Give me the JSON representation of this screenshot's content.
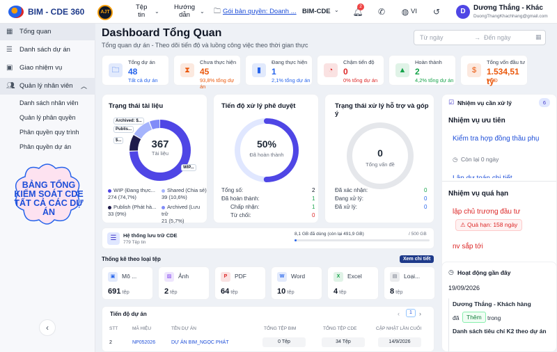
{
  "app": {
    "brand": "BIM - CDE 360",
    "org_logo_text": "AJT"
  },
  "topnav": {
    "tep_tin": "Tệp\ntin",
    "huong_dan": "Hướng\ndẫn",
    "license_link": "Gói bản quyền: Doanh ...",
    "module": "BIM-CDE",
    "notif_count": "2",
    "lang": "VI",
    "user_name": "Dương Thắng - Khác",
    "user_email": "DuongThangKhachhang@gmail.com",
    "avatar_letter": "D"
  },
  "sidebar": {
    "items": [
      {
        "label": "Tổng quan"
      },
      {
        "label": "Danh sách dự án"
      },
      {
        "label": "Giao nhiệm vụ"
      },
      {
        "label": "Quản lý nhân viên"
      }
    ],
    "subitems": [
      "Danh sách nhân viên",
      "Quản lý phân quyền",
      "Phân quyền quy trình",
      "Phân quyền dự án"
    ],
    "banner": "BẢNG TỔNG KIỂM SOÁT CDE TẤT CẢ CÁC DỰ ÁN"
  },
  "header": {
    "title": "Dashboard Tổng Quan",
    "subtitle": "Tổng quan dự án - Theo dõi tiến độ và luồng công việc theo thời gian thực",
    "date_from_placeholder": "Từ ngày",
    "date_to_placeholder": "Đến ngày"
  },
  "stats": [
    {
      "label": "Tổng dự án",
      "value": "48",
      "sub": "Tất cả dự án",
      "color": "#2563eb",
      "icon": "folder-icon"
    },
    {
      "label": "Chưa thực hiện",
      "value": "45",
      "sub": "93,8% tổng dự án",
      "color": "#ea580c",
      "icon": "hourglass-icon"
    },
    {
      "label": "Đang thực hiện",
      "value": "1",
      "sub": "2,1% tổng dự án",
      "color": "#2563eb",
      "icon": "bar-chart-icon"
    },
    {
      "label": "Chậm tiến độ",
      "value": "0",
      "sub": "0% tổng dự án",
      "color": "#dc2626",
      "icon": "clock-alert-icon"
    },
    {
      "label": "Hoàn thành",
      "value": "2",
      "sub": "4,2% tổng dự án",
      "color": "#16a34a",
      "icon": "growth-chart-icon"
    },
    {
      "label": "Tổng vốn đầu tư",
      "value": "1.534,51 tỷ",
      "sub": "VNĐ",
      "color": "#ea580c",
      "icon": "money-icon"
    }
  ],
  "doc_status": {
    "title": "Trạng thái tài liệu",
    "total": "367",
    "total_label": "Tài liệu",
    "tags": [
      "Archived: $...",
      "Publis...",
      "$...",
      "WIP..."
    ],
    "legend": [
      {
        "name": "WIP (Đang thực...",
        "detail": "274 (74,7%)",
        "color": "#4f46e5"
      },
      {
        "name": "Shared (Chia sẻ)",
        "detail": "39 (10,6%)",
        "color": "#a5b4fc"
      },
      {
        "name": "Publish (Phát hà...",
        "detail": "33 (9%)",
        "color": "#1e1b4b"
      },
      {
        "name": "Archived (Lưu trữ",
        "detail": "21 (5,7%)",
        "color": "#818cf8"
      }
    ]
  },
  "approval": {
    "title": "Tiến độ xử lý phê duyệt",
    "percent": "50%",
    "percent_label": "Đã hoàn thành",
    "rows": [
      {
        "label": "Tổng số:",
        "value": "2"
      },
      {
        "label": "Đã hoàn thành:",
        "value": "1"
      },
      {
        "label": "Chấp nhận:",
        "value": "1"
      },
      {
        "label": "Từ chối:",
        "value": "0"
      }
    ]
  },
  "support": {
    "title": "Trạng thái xử lý hỗ trợ và góp ý",
    "count": "0",
    "count_label": "Tổng vấn đề",
    "rows": [
      {
        "label": "Đã xác nhận:",
        "value": "0"
      },
      {
        "label": "Đang xử lý:",
        "value": "0"
      },
      {
        "label": "Đã xử lý:",
        "value": "0"
      }
    ]
  },
  "storage": {
    "title": "Hệ thống lưu trữ CDE",
    "files": "779 Tệp tin",
    "used": "8,1 GB đã dùng (còn lại 491,9 GB)",
    "total": "/ 500 GB",
    "used_fraction": 0.0162
  },
  "file_types": {
    "title": "Thống kê theo loại tệp",
    "view_all": "Xem chi tiết",
    "items": [
      {
        "name": "Mô ...",
        "count": "691",
        "unit": "tệp",
        "color": "#2563eb",
        "icon": "model-icon"
      },
      {
        "name": "Ảnh",
        "count": "2",
        "unit": "tệp",
        "color": "#7c3aed",
        "icon": "image-icon"
      },
      {
        "name": "PDF",
        "count": "64",
        "unit": "tệp",
        "color": "#dc2626",
        "icon": "pdf-icon"
      },
      {
        "name": "Word",
        "count": "10",
        "unit": "tệp",
        "color": "#2563eb",
        "icon": "word-icon"
      },
      {
        "name": "Excel",
        "count": "4",
        "unit": "tệp",
        "color": "#16a34a",
        "icon": "excel-icon"
      },
      {
        "name": "Loại...",
        "count": "8",
        "unit": "tệp",
        "color": "#6b7280",
        "icon": "file-icon"
      }
    ]
  },
  "progress_table": {
    "title": "Tiến độ dự án",
    "page": "1",
    "columns": [
      "STT",
      "MÃ HIỆU",
      "TÊN DỰ ÁN",
      "TỔNG TỆP BIM",
      "TỔNG TỆP CDE",
      "CẬP NHẬT LẦN CUỐI"
    ],
    "rows": [
      {
        "stt": "2",
        "code": "NP052026",
        "name": "DỰ ÁN BIM_NGỌC PHÁT",
        "bim": "0 Tệp",
        "cde": "34 Tệp",
        "updated": "14/9/2026"
      }
    ]
  },
  "tasks": {
    "title": "Nhiệm vụ cần xử lý",
    "count": "6",
    "priority_title": "Nhiệm vụ ưu tiên",
    "priority_item": "Kiểm tra hợp đồng thầu phụ",
    "priority_due": "Còn lại 0 ngày",
    "priority_next": "Lập dự toán chi tiết ...",
    "overdue_title": "Nhiệm vụ quá hạn",
    "overdue_item": "lập chủ trương đầu tư",
    "overdue_badge": "Quá hạn: 158 ngày",
    "overdue_next": "nv sắp tới"
  },
  "activity": {
    "title": "Hoạt động gần đây",
    "date": "19/09/2026",
    "actor": "Dương Thắng - Khách hàng",
    "verb_pre": "đã",
    "verb": "Thêm",
    "verb_post": "trong",
    "target": "Danh sách tiêu chí K2 theo dự án"
  }
}
